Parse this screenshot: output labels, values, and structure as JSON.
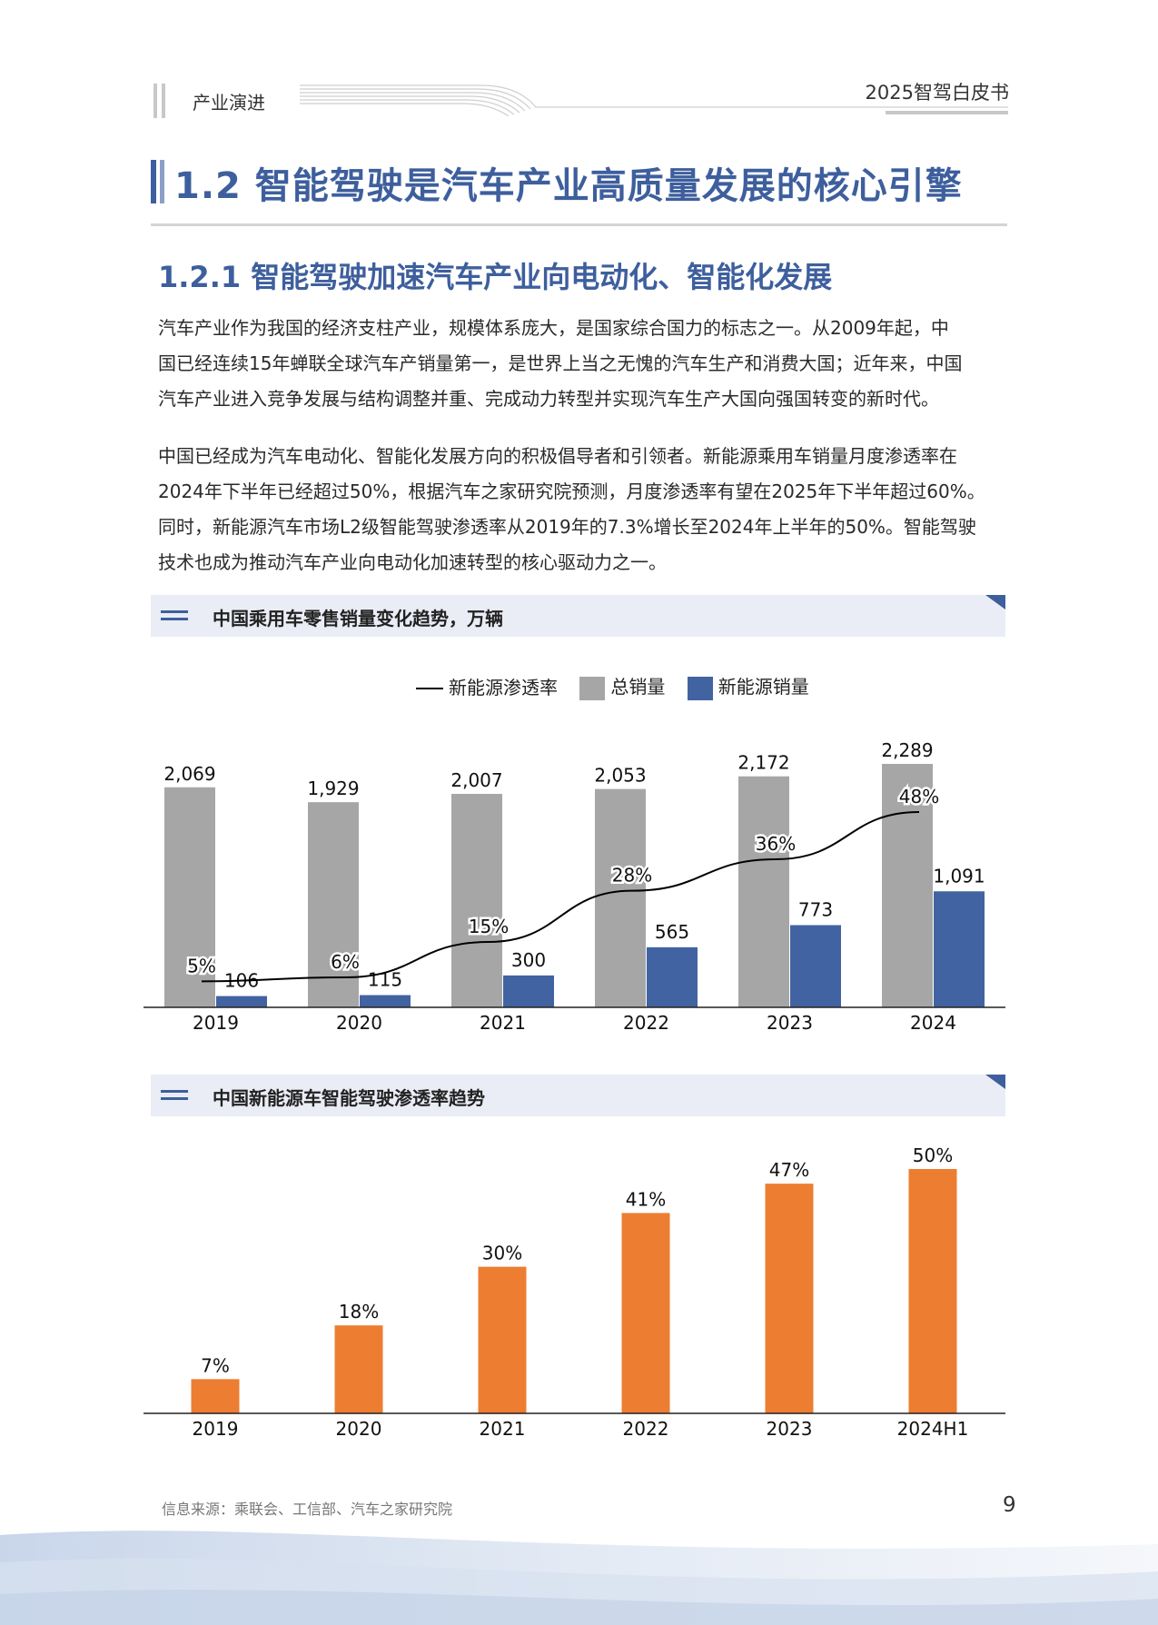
{
  "header": {
    "section": "产业演进",
    "doc_title": "2025智驾白皮书"
  },
  "heading1": "1.2 智能驾驶是汽车产业高质量发展的核心引擎",
  "heading2": "1.2.1 智能驾驶加速汽车产业向电动化、智能化发展",
  "paragraph1": [
    "汽车产业作为我国的经济支柱产业，规模体系庞大，是国家综合国力的标志之一。从2009年起，中",
    "国已经连续15年蝉联全球汽车产销量第一，是世界上当之无愧的汽车生产和消费大国；近年来，中国",
    "汽车产业进入竞争发展与结构调整并重、完成动力转型并实现汽车生产大国向强国转变的新时代。"
  ],
  "paragraph2": [
    "中国已经成为汽车电动化、智能化发展方向的积极倡导者和引领者。新能源乘用车销量月度渗透率在",
    "2024年下半年已经超过50%，根据汽车之家研究院预测，月度渗透率有望在2025年下半年超过60%。",
    "同时，新能源汽车市场L2级智能驾驶渗透率从2019年的7.3%增长至2024年上半年的50%。智能驾驶",
    "技术也成为推动汽车产业向电动化加速转型的核心驱动力之一。"
  ],
  "chart_data": [
    {
      "type": "bar",
      "title": "中国乘用车零售销量变化趋势，万辆",
      "categories": [
        "2019",
        "2020",
        "2021",
        "2022",
        "2023",
        "2024"
      ],
      "series": [
        {
          "name": "总销量",
          "kind": "bar",
          "color": "#a6a6a6",
          "values": [
            2069,
            1929,
            2007,
            2053,
            2172,
            2289
          ],
          "labels": [
            "2,069",
            "1,929",
            "2,007",
            "2,053",
            "2,172",
            "2,289"
          ]
        },
        {
          "name": "新能源销量",
          "kind": "bar",
          "color": "#4263a1",
          "values": [
            106,
            115,
            300,
            565,
            773,
            1091
          ],
          "labels": [
            "106",
            "115",
            "300",
            "565",
            "773",
            "1,091"
          ]
        },
        {
          "name": "新能源渗透率",
          "kind": "line",
          "color": "#000000",
          "values": [
            5,
            6,
            15,
            28,
            36,
            48
          ],
          "labels": [
            "5%",
            "6%",
            "15%",
            "28%",
            "36%",
            "48%"
          ]
        }
      ],
      "legend_position": "top"
    },
    {
      "type": "bar",
      "title": "中国新能源车智能驾驶渗透率趋势",
      "categories": [
        "2019",
        "2020",
        "2021",
        "2022",
        "2023",
        "2024H1"
      ],
      "series": [
        {
          "name": "",
          "color": "#ed7d31",
          "values": [
            7,
            18,
            30,
            41,
            47,
            50
          ],
          "labels": [
            "7%",
            "18%",
            "30%",
            "41%",
            "47%",
            "50%"
          ]
        }
      ]
    }
  ],
  "source": "信息来源：乘联会、工信部、汽车之家研究院",
  "page_number": "9"
}
